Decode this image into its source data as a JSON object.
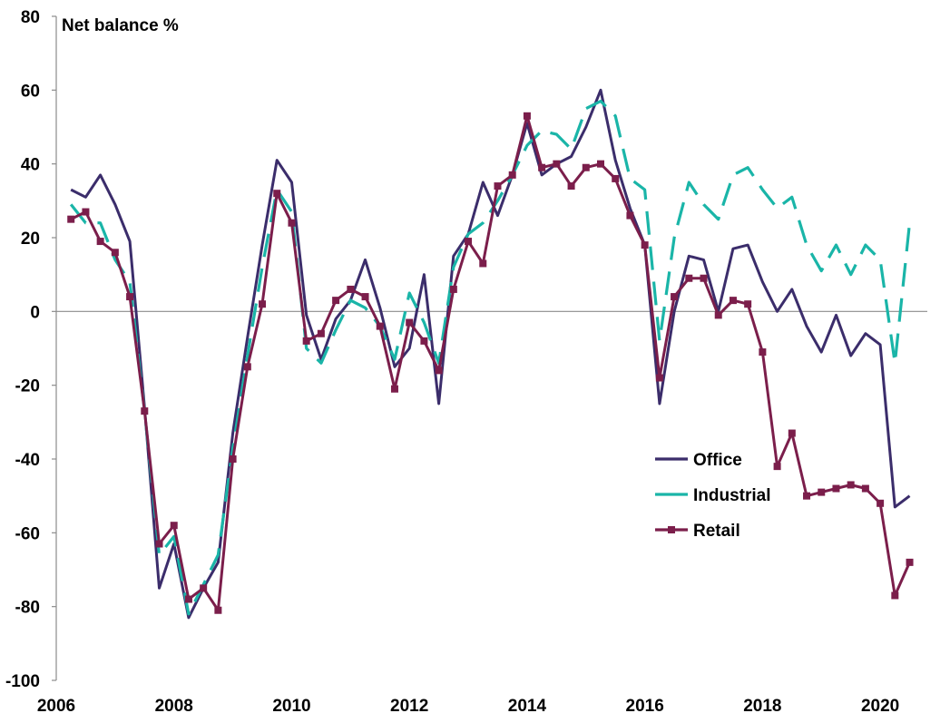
{
  "chart_data": {
    "type": "line",
    "title": "",
    "ylabel": "Net balance %",
    "xlabel": "",
    "ylim": [
      -100,
      80
    ],
    "xlim": [
      2006,
      2020.8
    ],
    "yticks": [
      80,
      60,
      40,
      20,
      0,
      -20,
      -40,
      -60,
      -80,
      -100
    ],
    "xticks": [
      2006,
      2008,
      2010,
      2012,
      2014,
      2016,
      2018,
      2020
    ],
    "grid": false,
    "zero_line": true,
    "legend_position": "lower-right",
    "x": [
      2006.25,
      2006.5,
      2006.75,
      2007,
      2007.25,
      2007.5,
      2007.75,
      2008,
      2008.25,
      2008.5,
      2008.75,
      2009,
      2009.25,
      2009.5,
      2009.75,
      2010,
      2010.25,
      2010.5,
      2010.75,
      2011,
      2011.25,
      2011.5,
      2011.75,
      2012,
      2012.25,
      2012.5,
      2012.75,
      2013,
      2013.25,
      2013.5,
      2013.75,
      2014,
      2014.25,
      2014.5,
      2014.75,
      2015,
      2015.25,
      2015.5,
      2015.75,
      2016,
      2016.25,
      2016.5,
      2016.75,
      2017,
      2017.25,
      2017.5,
      2017.75,
      2018,
      2018.25,
      2018.5,
      2018.75,
      2019,
      2019.25,
      2019.5,
      2019.75,
      2020,
      2020.25,
      2020.5
    ],
    "series": [
      {
        "name": "Office",
        "color": "#3b2d6b",
        "style": "solid",
        "marker": "none",
        "values": [
          33,
          31,
          37,
          29,
          19,
          -26,
          -75,
          -63,
          -83,
          -75,
          -68,
          -33,
          -7,
          18,
          41,
          35,
          -1,
          -13,
          -2,
          3,
          14,
          1,
          -15,
          -10,
          10,
          -25,
          15,
          21,
          35,
          26,
          37,
          51,
          37,
          40,
          42,
          50,
          60,
          41,
          28,
          18,
          -25,
          0,
          15,
          14,
          0,
          17,
          18,
          8,
          0,
          6,
          -4,
          -11,
          -1,
          -12,
          -6,
          -9,
          -53,
          -50
        ]
      },
      {
        "name": "Industrial",
        "color": "#1ab5a8",
        "style": "dashed",
        "marker": "none",
        "values": [
          29,
          24,
          24,
          14,
          8,
          -27,
          -66,
          -61,
          -82,
          -74,
          -66,
          -37,
          -12,
          12,
          33,
          27,
          -10,
          -14,
          -5,
          3,
          1,
          -4,
          -13,
          5,
          -3,
          -14,
          12,
          21,
          24,
          30,
          37,
          45,
          49,
          48,
          44,
          55,
          57,
          53,
          36,
          33,
          -8,
          20,
          35,
          29,
          25,
          37,
          39,
          33,
          28,
          31,
          18,
          11,
          18,
          10,
          18,
          14,
          -14,
          24
        ]
      },
      {
        "name": "Retail",
        "color": "#7b1e4b",
        "style": "solid",
        "marker": "square",
        "values": [
          25,
          27,
          19,
          16,
          4,
          -27,
          -63,
          -58,
          -78,
          -75,
          -81,
          -40,
          -15,
          2,
          32,
          24,
          -8,
          -6,
          3,
          6,
          4,
          -4,
          -21,
          -3,
          -8,
          -16,
          6,
          19,
          13,
          34,
          37,
          53,
          39,
          40,
          34,
          39,
          40,
          36,
          26,
          18,
          -18,
          4,
          9,
          9,
          -1,
          3,
          2,
          -11,
          -42,
          -33,
          -50,
          -49,
          -48,
          -47,
          -48,
          -52,
          -77,
          -68
        ]
      }
    ]
  }
}
